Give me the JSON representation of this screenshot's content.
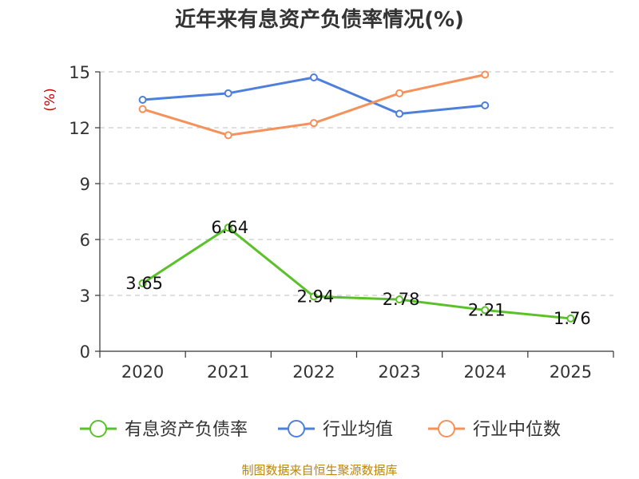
{
  "chart_data": {
    "type": "line",
    "title": "近年来有息资产负债率情况(%)",
    "ylabel": "(%)",
    "xlabel": "",
    "categories": [
      "2020",
      "2021",
      "2022",
      "2023",
      "2024",
      "2025"
    ],
    "ylim": [
      0,
      15
    ],
    "yticks": [
      0,
      3,
      6,
      9,
      12,
      15
    ],
    "grid": true,
    "legend_position": "bottom",
    "series": [
      {
        "name": "有息资产负债率",
        "color": "#5bc12a",
        "values": [
          3.65,
          6.64,
          2.94,
          2.78,
          2.21,
          1.76
        ],
        "labels": [
          "3.65",
          "6.64",
          "2.94",
          "2.78",
          "2.21",
          "1.76"
        ]
      },
      {
        "name": "行业均值",
        "color": "#4e7fdc",
        "values": [
          13.5,
          13.85,
          14.7,
          12.75,
          13.2,
          null
        ]
      },
      {
        "name": "行业中位数",
        "color": "#f5915a",
        "values": [
          13.0,
          11.6,
          12.25,
          13.85,
          14.85,
          null
        ]
      }
    ],
    "source": "制图数据来自恒生聚源数据库",
    "ylabel_color": "#cc0000"
  }
}
